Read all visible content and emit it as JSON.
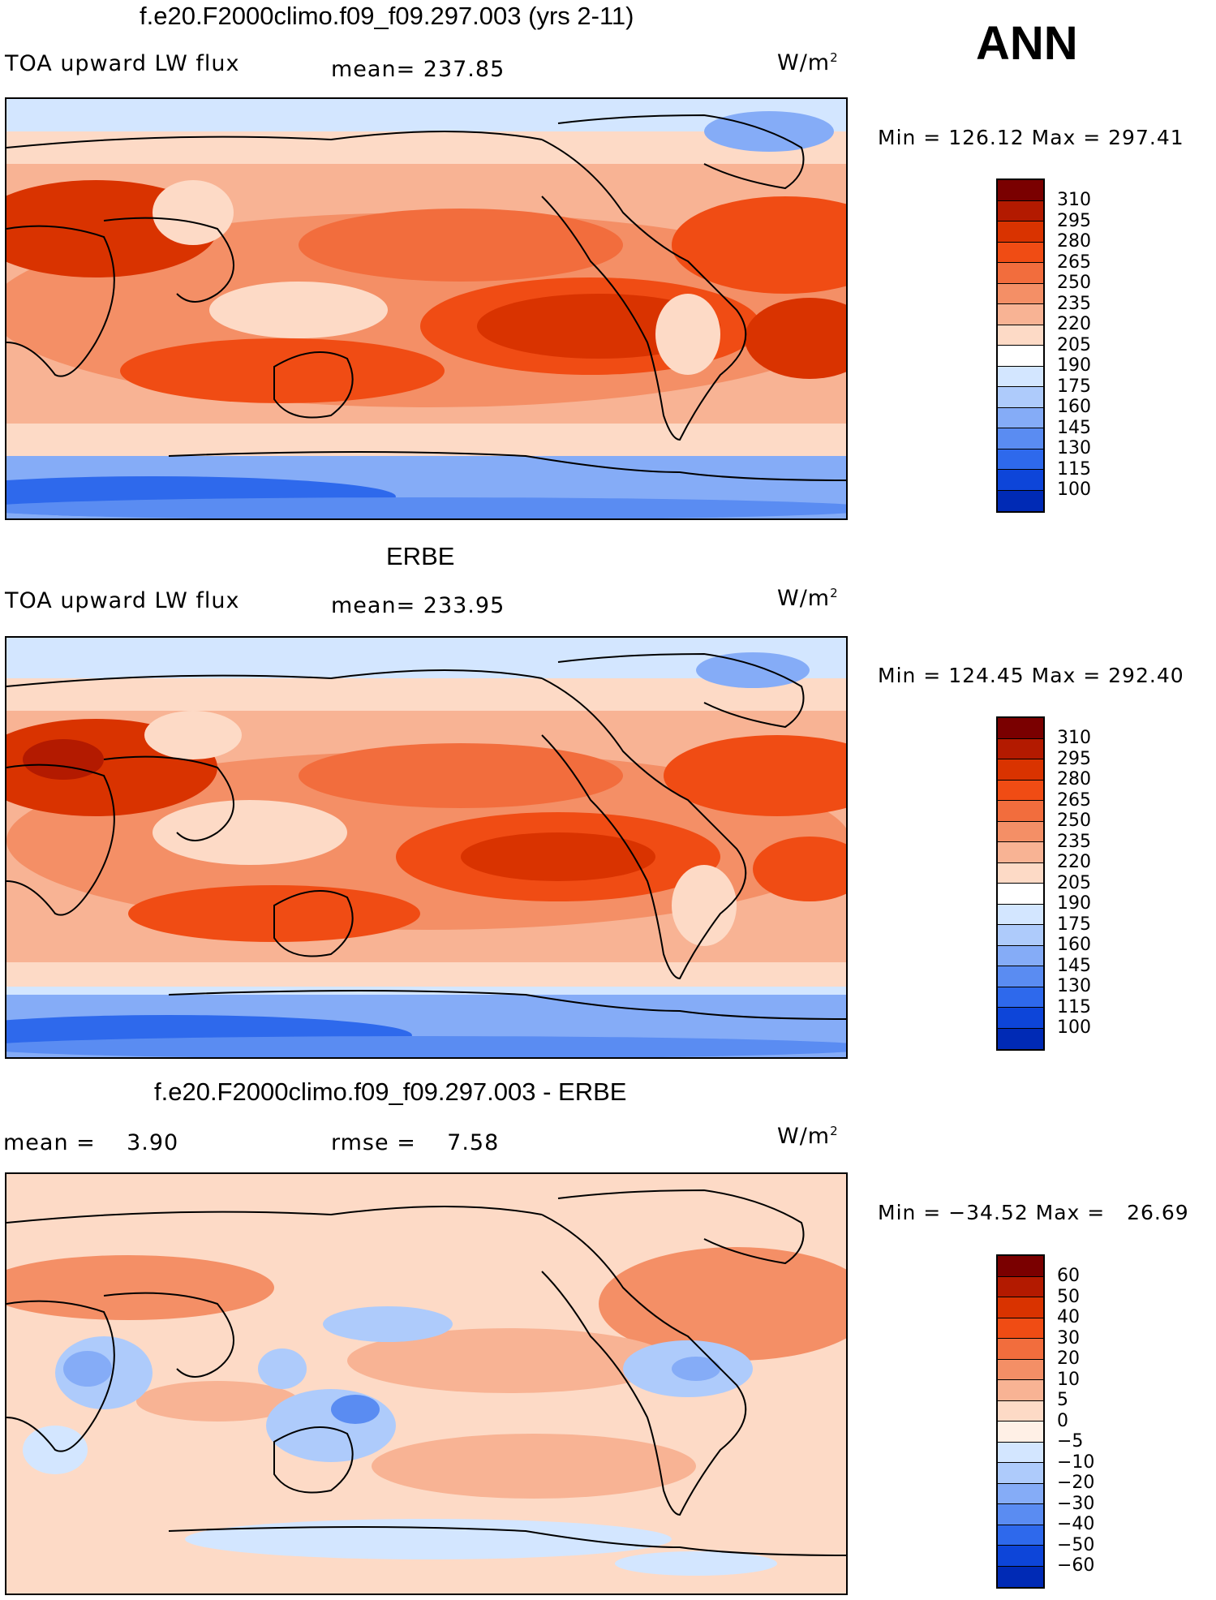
{
  "season": "ANN",
  "units_text": "W/m",
  "units_sup": "2",
  "panels": [
    {
      "title": "f.e20.F2000climo.f09_f09.297.003 (yrs 2-11)",
      "left_label": "TOA upward LW flux",
      "mid_label": "mean= 237.85",
      "minmax": "Min = 126.12 Max = 297.41",
      "levels": [
        "310",
        "295",
        "280",
        "265",
        "250",
        "235",
        "220",
        "205",
        "190",
        "175",
        "160",
        "145",
        "130",
        "115",
        "100"
      ],
      "colors": [
        "#7a0000",
        "#b31a00",
        "#d93300",
        "#f04c14",
        "#f26d3d",
        "#f48f66",
        "#f8b394",
        "#fddac6",
        "#ffffff",
        "#d3e6ff",
        "#aecbfb",
        "#85acf7",
        "#5a8cf2",
        "#2e69ec",
        "#0d45d9",
        "#002ab5",
        "#001288"
      ]
    },
    {
      "title": "ERBE",
      "left_label": "TOA upward LW flux",
      "mid_label": "mean= 233.95",
      "minmax": "Min = 124.45 Max = 292.40",
      "levels": [
        "310",
        "295",
        "280",
        "265",
        "250",
        "235",
        "220",
        "205",
        "190",
        "175",
        "160",
        "145",
        "130",
        "115",
        "100"
      ],
      "colors": [
        "#7a0000",
        "#b31a00",
        "#d93300",
        "#f04c14",
        "#f26d3d",
        "#f48f66",
        "#f8b394",
        "#fddac6",
        "#ffffff",
        "#d3e6ff",
        "#aecbfb",
        "#85acf7",
        "#5a8cf2",
        "#2e69ec",
        "#0d45d9",
        "#002ab5",
        "#001288"
      ]
    },
    {
      "title": "f.e20.F2000climo.f09_f09.297.003 - ERBE",
      "left_label": "mean =    3.90",
      "mid_label": "rmse =    7.58",
      "minmax": "Min = −34.52 Max =   26.69",
      "levels": [
        "60",
        "50",
        "40",
        "30",
        "20",
        "10",
        "5",
        "0",
        "−5",
        "−10",
        "−20",
        "−30",
        "−40",
        "−50",
        "−60"
      ],
      "colors": [
        "#7a0000",
        "#b31a00",
        "#d93300",
        "#f04c14",
        "#f26d3d",
        "#f48f66",
        "#f8b394",
        "#fddac6",
        "#fff0e6",
        "#d3e6ff",
        "#aecbfb",
        "#85acf7",
        "#5a8cf2",
        "#2e69ec",
        "#0d45d9",
        "#002ab5",
        "#001288"
      ]
    }
  ]
}
